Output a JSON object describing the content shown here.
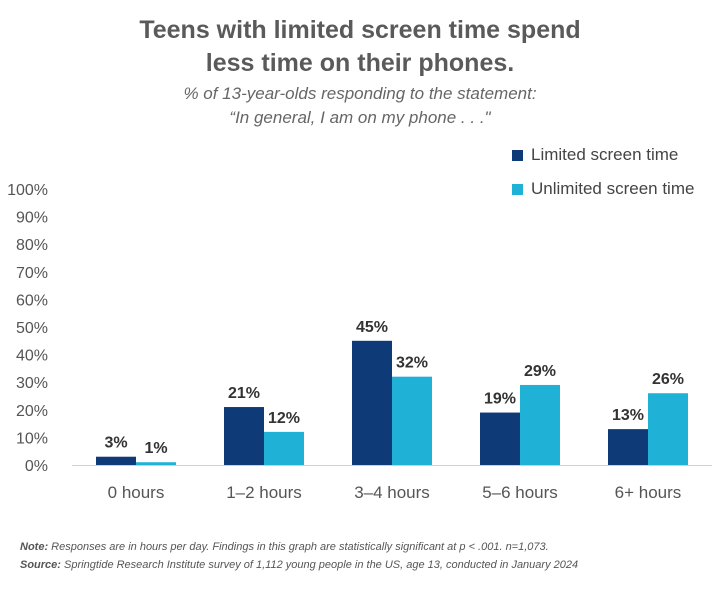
{
  "title": [
    "Teens with limited screen time spend",
    "less time on their phones."
  ],
  "subtitle": [
    "% of 13-year-olds responding to the statement:",
    "“In general, I am on my phone . . .\""
  ],
  "legend": [
    {
      "label": "Limited screen time",
      "color": "#0f3a78"
    },
    {
      "label": "Unlimited screen time",
      "color": "#1fb2d6"
    }
  ],
  "note": {
    "label": "Note:",
    "text": " Responses are in hours per day. Findings in this graph are statistically significant at p < .001. n=1,073."
  },
  "source": {
    "label": "Source:",
    "text": " Springtide Research Institute survey of 1,112 young people in the US, age 13, conducted in January 2024"
  },
  "chart_data": {
    "type": "bar",
    "categories": [
      "0 hours",
      "1–2 hours",
      "3–4 hours",
      "5–6 hours",
      "6+ hours"
    ],
    "series": [
      {
        "name": "Limited screen time",
        "values": [
          3,
          21,
          45,
          19,
          13
        ],
        "labels": [
          "3%",
          "21%",
          "45%",
          "19%",
          "13%"
        ],
        "color": "#0f3a78"
      },
      {
        "name": "Unlimited screen time",
        "values": [
          1,
          12,
          32,
          29,
          26
        ],
        "labels": [
          "1%",
          "12%",
          "32%",
          "29%",
          "26%"
        ],
        "color": "#1fb2d6"
      }
    ],
    "yticks": [
      "0%",
      "10%",
      "20%",
      "30%",
      "40%",
      "50%",
      "60%",
      "70%",
      "80%",
      "90%",
      "100%"
    ],
    "ylim": [
      0,
      100
    ],
    "grid": false,
    "legend_position": "top-right"
  }
}
